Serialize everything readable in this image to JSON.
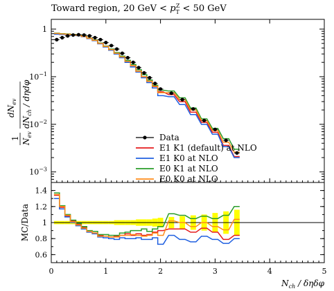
{
  "chart_data": {
    "type": "line",
    "title": {
      "prefix": "Toward region, 20 GeV < ",
      "var": "p",
      "sub": "T",
      "sup": "Z",
      "suffix": " < 50 GeV"
    },
    "xlabel": {
      "main": "N",
      "sub": "ch",
      "rest": " / δηδφ"
    },
    "ylabel": {
      "num": "dN",
      "num_sub": "ev",
      "den": "dN",
      "den_sub": "ch",
      "den_rest": " / dηdφ",
      "pre_num": "1",
      "pre_den": "N",
      "pre_den_sub": "ev"
    },
    "ratio_ylabel": "MC/Data",
    "xlim": [
      0,
      5
    ],
    "main_yscale": "log",
    "main_ylim": [
      0.0006,
      1.6
    ],
    "ratio_ylim": [
      0.5,
      1.5
    ],
    "x_ticks": [
      "0",
      "1",
      "2",
      "3",
      "4",
      "5"
    ],
    "main_y_ticks": [
      {
        "value": 1,
        "label": "1",
        "exp": ""
      },
      {
        "value": 0.1,
        "label": "10",
        "exp": "−1"
      },
      {
        "value": 0.01,
        "label": "10",
        "exp": "−2"
      },
      {
        "value": 0.001,
        "label": "10",
        "exp": "−3"
      }
    ],
    "ratio_y_ticks": [
      "0.6",
      "0.8",
      "1",
      "1.2",
      "1.4"
    ],
    "bin_width": 0.1,
    "data": {
      "name": "Data",
      "color": "#000000",
      "x": [
        0.1,
        0.2,
        0.3,
        0.4,
        0.5,
        0.6,
        0.7,
        0.8,
        0.9,
        1.0,
        1.1,
        1.2,
        1.3,
        1.4,
        1.5,
        1.6,
        1.7,
        1.8,
        1.9,
        2.0,
        2.2,
        2.4,
        2.6,
        2.8,
        3.0,
        3.2,
        3.4
      ],
      "y": [
        0.6,
        0.66,
        0.72,
        0.75,
        0.76,
        0.75,
        0.72,
        0.66,
        0.6,
        0.52,
        0.45,
        0.38,
        0.31,
        0.25,
        0.2,
        0.155,
        0.12,
        0.095,
        0.072,
        0.055,
        0.045,
        0.033,
        0.021,
        0.012,
        0.0078,
        0.0046,
        0.0025
      ]
    },
    "series": [
      {
        "name": "E1 K1 (default) at NLO",
        "color": "#e41a1c",
        "x": [
          0.1,
          0.2,
          0.3,
          0.4,
          0.5,
          0.6,
          0.7,
          0.8,
          0.9,
          1.0,
          1.1,
          1.2,
          1.3,
          1.4,
          1.5,
          1.6,
          1.7,
          1.8,
          1.9,
          2.0,
          2.2,
          2.4,
          2.6,
          2.8,
          3.0,
          3.2,
          3.4
        ],
        "y": [
          0.8,
          0.78,
          0.78,
          0.76,
          0.74,
          0.7,
          0.64,
          0.58,
          0.5,
          0.43,
          0.37,
          0.31,
          0.26,
          0.21,
          0.17,
          0.13,
          0.1,
          0.08,
          0.062,
          0.048,
          0.042,
          0.03,
          0.018,
          0.011,
          0.0068,
          0.0036,
          0.0021
        ],
        "ratio": [
          1.34,
          1.19,
          1.08,
          1.02,
          0.98,
          0.94,
          0.89,
          0.87,
          0.84,
          0.83,
          0.82,
          0.83,
          0.84,
          0.86,
          0.84,
          0.86,
          0.84,
          0.85,
          0.88,
          0.9,
          0.92,
          0.92,
          0.88,
          0.93,
          0.88,
          0.79,
          0.84
        ]
      },
      {
        "name": "E1 K0 at NLO",
        "color": "#1f5fe0",
        "x": [
          0.1,
          0.2,
          0.3,
          0.4,
          0.5,
          0.6,
          0.7,
          0.8,
          0.9,
          1.0,
          1.1,
          1.2,
          1.3,
          1.4,
          1.5,
          1.6,
          1.7,
          1.8,
          1.9,
          2.0,
          2.2,
          2.4,
          2.6,
          2.8,
          3.0,
          3.2,
          3.4
        ],
        "y": [
          0.78,
          0.77,
          0.77,
          0.75,
          0.73,
          0.69,
          0.63,
          0.57,
          0.49,
          0.42,
          0.36,
          0.3,
          0.25,
          0.2,
          0.16,
          0.125,
          0.095,
          0.075,
          0.058,
          0.04,
          0.038,
          0.026,
          0.016,
          0.01,
          0.0062,
          0.0034,
          0.002
        ],
        "ratio": [
          1.3,
          1.17,
          1.07,
          1.0,
          0.96,
          0.92,
          0.88,
          0.86,
          0.82,
          0.81,
          0.8,
          0.79,
          0.81,
          0.8,
          0.8,
          0.81,
          0.79,
          0.79,
          0.81,
          0.73,
          0.84,
          0.79,
          0.76,
          0.83,
          0.79,
          0.74,
          0.8
        ]
      },
      {
        "name": "E0 K1 at NLO",
        "color": "#2a9d2a",
        "x": [
          0.1,
          0.2,
          0.3,
          0.4,
          0.5,
          0.6,
          0.7,
          0.8,
          0.9,
          1.0,
          1.1,
          1.2,
          1.3,
          1.4,
          1.5,
          1.6,
          1.7,
          1.8,
          1.9,
          2.0,
          2.2,
          2.4,
          2.6,
          2.8,
          3.0,
          3.2,
          3.4
        ],
        "y": [
          0.82,
          0.8,
          0.79,
          0.77,
          0.75,
          0.71,
          0.65,
          0.59,
          0.51,
          0.44,
          0.38,
          0.32,
          0.27,
          0.22,
          0.18,
          0.14,
          0.11,
          0.085,
          0.066,
          0.052,
          0.05,
          0.036,
          0.022,
          0.013,
          0.0082,
          0.005,
          0.003
        ],
        "ratio": [
          1.37,
          1.21,
          1.1,
          1.03,
          0.99,
          0.95,
          0.9,
          0.89,
          0.85,
          0.85,
          0.84,
          0.84,
          0.87,
          0.88,
          0.9,
          0.9,
          0.92,
          0.89,
          0.92,
          0.95,
          1.11,
          1.09,
          1.05,
          1.08,
          1.05,
          1.09,
          1.2
        ]
      },
      {
        "name": "E0 K0 at NLO",
        "color": "#ff8c1a",
        "x": [
          0.1,
          0.2,
          0.3,
          0.4,
          0.5,
          0.6,
          0.7,
          0.8,
          0.9,
          1.0,
          1.1,
          1.2,
          1.3,
          1.4,
          1.5,
          1.6,
          1.7,
          1.8,
          1.9,
          2.0,
          2.2,
          2.4,
          2.6,
          2.8,
          3.0,
          3.2,
          3.4
        ],
        "y": [
          0.81,
          0.79,
          0.78,
          0.76,
          0.74,
          0.7,
          0.64,
          0.58,
          0.5,
          0.43,
          0.37,
          0.31,
          0.26,
          0.21,
          0.17,
          0.13,
          0.1,
          0.08,
          0.063,
          0.046,
          0.046,
          0.033,
          0.02,
          0.012,
          0.0074,
          0.0042,
          0.0026
        ],
        "ratio": [
          1.35,
          1.2,
          1.09,
          1.01,
          0.97,
          0.93,
          0.89,
          0.87,
          0.83,
          0.83,
          0.82,
          0.82,
          0.84,
          0.84,
          0.85,
          0.84,
          0.83,
          0.84,
          0.87,
          0.84,
          1.02,
          1.0,
          0.95,
          1.0,
          0.95,
          0.91,
          1.04
        ]
      }
    ],
    "data_uncertainty_band": {
      "color": "#ffff00",
      "x": [
        0.1,
        0.2,
        0.3,
        0.4,
        0.5,
        0.6,
        0.7,
        0.8,
        0.9,
        1.0,
        1.1,
        1.2,
        1.3,
        1.4,
        1.5,
        1.6,
        1.7,
        1.8,
        1.9,
        2.0,
        2.2,
        2.4,
        2.6,
        2.8,
        3.0,
        3.2,
        3.4
      ],
      "lo": [
        0.98,
        0.98,
        0.98,
        0.98,
        0.98,
        0.98,
        0.98,
        0.98,
        0.98,
        0.98,
        0.98,
        0.97,
        0.97,
        0.97,
        0.97,
        0.96,
        0.96,
        0.96,
        0.95,
        0.94,
        0.93,
        0.92,
        0.91,
        0.9,
        0.88,
        0.86,
        0.84
      ],
      "hi": [
        1.02,
        1.02,
        1.02,
        1.02,
        1.02,
        1.02,
        1.02,
        1.02,
        1.02,
        1.02,
        1.02,
        1.03,
        1.03,
        1.03,
        1.03,
        1.04,
        1.04,
        1.04,
        1.05,
        1.06,
        1.07,
        1.08,
        1.09,
        1.1,
        1.12,
        1.14,
        1.16
      ]
    },
    "legend_placement": "bottom-center",
    "grid": false
  }
}
